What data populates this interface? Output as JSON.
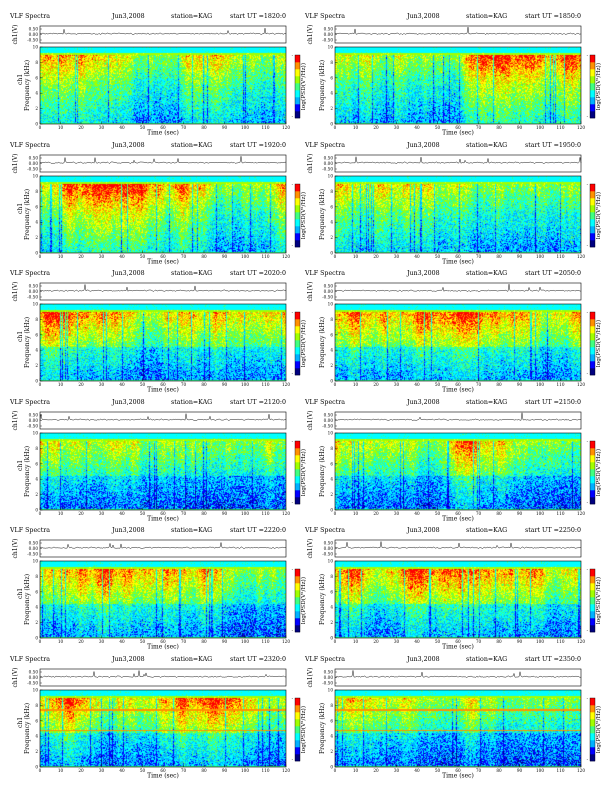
{
  "chart_data": [
    {
      "type": "heatmap",
      "title": "VLF Spectra",
      "date": "Jun3,2008",
      "station": "station=KAG",
      "start": "start UT =1820:0",
      "ylabel_top": "ch1(V)",
      "ylabel": "Frequency (kHz)",
      "channel": "ch1",
      "xlabel": "Time (sec)",
      "xlim": [
        0,
        120
      ],
      "ylim": [
        0,
        10
      ],
      "ylim_top": [
        -0.5,
        0.5
      ],
      "colorbar_label": "log(PSD(V²/Hz))"
    },
    {
      "type": "heatmap",
      "title": "VLF Spectra",
      "date": "Jun3,2008",
      "station": "station=KAG",
      "start": "start UT =1850:0",
      "ylabel_top": "ch1(V)",
      "ylabel": "Frequency (kHz)",
      "channel": "",
      "xlabel": "Time (sec)",
      "xlim": [
        0,
        120
      ],
      "ylim": [
        0,
        10
      ],
      "ylim_top": [
        -0.5,
        0.5
      ],
      "colorbar_label": "log(PSD(V²/Hz))"
    },
    {
      "type": "heatmap",
      "title": "VLF Spectra",
      "date": "Jun3,2008",
      "station": "station=KAG",
      "start": "start UT =1920:0",
      "ylabel_top": "ch1(V)",
      "ylabel": "Frequency (kHz)",
      "channel": "ch1",
      "xlabel": "Time (sec)",
      "xlim": [
        0,
        120
      ],
      "ylim": [
        0,
        10
      ],
      "ylim_top": [
        -0.5,
        0.5
      ],
      "colorbar_label": "log(PSD(V²/Hz))"
    },
    {
      "type": "heatmap",
      "title": "VLF Spectra",
      "date": "Jun3,2008",
      "station": "station=KAG",
      "start": "start UT =1950:0",
      "ylabel_top": "ch1(V)",
      "ylabel": "Frequency (kHz)",
      "channel": "",
      "xlabel": "Time (sec)",
      "xlim": [
        0,
        120
      ],
      "ylim": [
        0,
        10
      ],
      "ylim_top": [
        -0.5,
        0.5
      ],
      "colorbar_label": "log(PSD(V²/Hz))"
    },
    {
      "type": "heatmap",
      "title": "VLF Spectra",
      "date": "Jun3,2008",
      "station": "station=KAG",
      "start": "start UT =2020:0",
      "ylabel_top": "ch1(V)",
      "ylabel": "Frequency (kHz)",
      "channel": "ch1",
      "xlabel": "Time (sec)",
      "xlim": [
        0,
        120
      ],
      "ylim": [
        0,
        10
      ],
      "ylim_top": [
        -0.5,
        0.5
      ],
      "colorbar_label": "log(PSD(V²/Hz))"
    },
    {
      "type": "heatmap",
      "title": "VLF Spectra",
      "date": "Jun3,2008",
      "station": "station=KAG",
      "start": "start UT =2050:0",
      "ylabel_top": "ch1(V)",
      "ylabel": "Frequency (kHz)",
      "channel": "",
      "xlabel": "Time (sec)",
      "xlim": [
        0,
        120
      ],
      "ylim": [
        0,
        10
      ],
      "ylim_top": [
        -0.5,
        0.5
      ],
      "colorbar_label": "log(PSD(V²/Hz))"
    },
    {
      "type": "heatmap",
      "title": "VLF Spectra",
      "date": "Jun3,2008",
      "station": "station=KAG",
      "start": "start UT =2120:0",
      "ylabel_top": "ch1(V)",
      "ylabel": "Frequency (kHz)",
      "channel": "ch1",
      "xlabel": "Time (sec)",
      "xlim": [
        0,
        120
      ],
      "ylim": [
        0,
        10
      ],
      "ylim_top": [
        -0.5,
        0.5
      ],
      "colorbar_label": "log(PSD(V²/Hz))"
    },
    {
      "type": "heatmap",
      "title": "VLF Spectra",
      "date": "Jun3,2008",
      "station": "station=KAG",
      "start": "start UT =2150:0",
      "ylabel_top": "ch1(V)",
      "ylabel": "Frequency (kHz)",
      "channel": "",
      "xlabel": "Time (sec)",
      "xlim": [
        0,
        120
      ],
      "ylim": [
        0,
        10
      ],
      "ylim_top": [
        -0.5,
        0.5
      ],
      "colorbar_label": "log(PSD(V²/Hz))"
    },
    {
      "type": "heatmap",
      "title": "VLF Spectra",
      "date": "Jun3,2008",
      "station": "station=KAG",
      "start": "start UT =2220:0",
      "ylabel_top": "ch1(V)",
      "ylabel": "Frequency (kHz)",
      "channel": "ch1",
      "xlabel": "Time (sec)",
      "xlim": [
        0,
        120
      ],
      "ylim": [
        0,
        10
      ],
      "ylim_top": [
        -0.5,
        0.5
      ],
      "colorbar_label": "log(PSD(V²/Hz))"
    },
    {
      "type": "heatmap",
      "title": "VLF Spectra",
      "date": "Jun3,2008",
      "station": "station=KAG",
      "start": "start UT =2250:0",
      "ylabel_top": "ch1(V)",
      "ylabel": "Frequency (kHz)",
      "channel": "",
      "xlabel": "Time (sec)",
      "xlim": [
        0,
        120
      ],
      "ylim": [
        0,
        10
      ],
      "ylim_top": [
        -0.5,
        0.5
      ],
      "colorbar_label": "log(PSD(V²/Hz))"
    },
    {
      "type": "heatmap",
      "title": "VLF Spectra",
      "date": "Jun3,2008",
      "station": "station=KAG",
      "start": "start UT =2320:0",
      "ylabel_top": "ch1(V)",
      "ylabel": "Frequency (kHz)",
      "channel": "ch1",
      "xlabel": "Time (sec)",
      "xlim": [
        0,
        120
      ],
      "ylim": [
        0,
        10
      ],
      "ylim_top": [
        -0.5,
        0.5
      ],
      "colorbar_label": "log(PSD(V²/Hz))"
    },
    {
      "type": "heatmap",
      "title": "VLF Spectra",
      "date": "Jun3,2008",
      "station": "station=KAG",
      "start": "start UT =2350:0",
      "ylabel_top": "ch1(V)",
      "ylabel": "Frequency (kHz)",
      "channel": "",
      "xlabel": "Time (sec)",
      "xlim": [
        0,
        120
      ],
      "ylim": [
        0,
        10
      ],
      "ylim_top": [
        -0.5,
        0.5
      ],
      "colorbar_label": "log(PSD(V²/Hz))"
    }
  ],
  "shared": {
    "x_ticks": [
      0,
      10,
      20,
      30,
      40,
      50,
      60,
      70,
      80,
      90,
      100,
      110,
      120
    ],
    "y_ticks": [
      0,
      2,
      4,
      6,
      8,
      10
    ],
    "top_ticks": [
      "0.50",
      "0.00",
      "-0.50"
    ],
    "colorbar_ticks": [
      "-",
      "-"
    ],
    "colormap": [
      "#000080",
      "#0000ff",
      "#00b0ff",
      "#00ffff",
      "#40ff80",
      "#a0ff00",
      "#ffff00",
      "#ff9000",
      "#ff0000",
      "#ffffff"
    ]
  }
}
